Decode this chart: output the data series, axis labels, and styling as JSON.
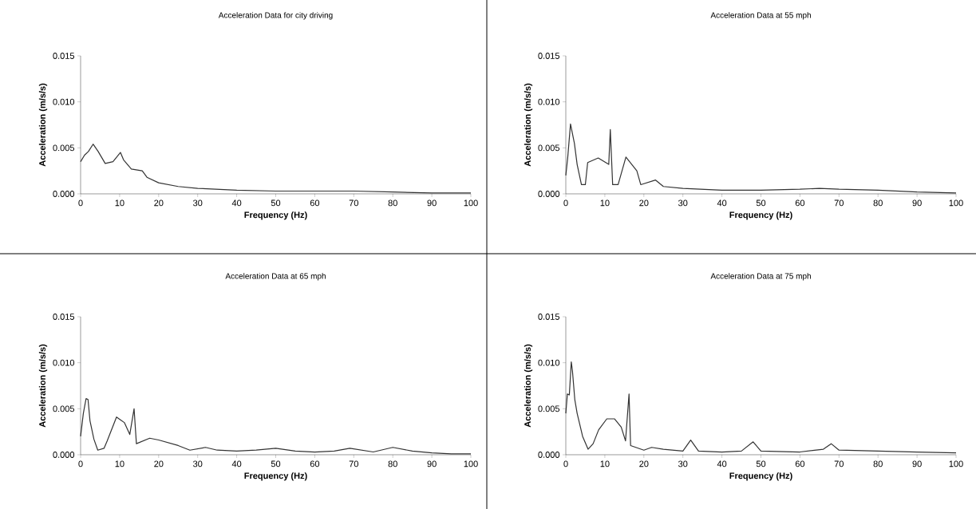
{
  "chart_data": [
    {
      "type": "line",
      "title": "Acceleration Data for city driving",
      "xlabel": "Frequency (Hz)",
      "ylabel": "Acceleration (m/s/s)",
      "xlim": [
        0,
        100
      ],
      "ylim": [
        0,
        0.015
      ],
      "xticks": [
        0,
        10,
        20,
        30,
        40,
        50,
        60,
        70,
        80,
        90,
        100
      ],
      "yticks": [
        {
          "value": 0,
          "label": "0.000"
        },
        {
          "value": 0.005,
          "label": "0.005"
        },
        {
          "value": 0.01,
          "label": "0.010"
        },
        {
          "value": 0.015,
          "label": "0.015"
        }
      ],
      "x": [
        0,
        1,
        2,
        3.2,
        4.5,
        6.3,
        8.3,
        10.2,
        11,
        13,
        15.8,
        17,
        20,
        25,
        30,
        40,
        50,
        60,
        70,
        80,
        90,
        100
      ],
      "series": [
        {
          "color": "#333333",
          "values": [
            0.0035,
            0.0042,
            0.0046,
            0.0054,
            0.0046,
            0.0033,
            0.0035,
            0.0045,
            0.0037,
            0.0027,
            0.0025,
            0.0018,
            0.0012,
            0.0008,
            0.0006,
            0.0004,
            0.0003,
            0.0003,
            0.0003,
            0.0002,
            0.0001,
            0.0001
          ]
        }
      ]
    },
    {
      "type": "line",
      "title": "Acceleration Data at 55 mph",
      "xlabel": "Frequency (Hz)",
      "ylabel": "Acceleration (m/s/s)",
      "xlim": [
        0,
        100
      ],
      "ylim": [
        0,
        0.015
      ],
      "xticks": [
        0,
        10,
        20,
        30,
        40,
        50,
        60,
        70,
        80,
        90,
        100
      ],
      "yticks": [
        {
          "value": 0,
          "label": "0.000"
        },
        {
          "value": 0.005,
          "label": "0.005"
        },
        {
          "value": 0.01,
          "label": "0.010"
        },
        {
          "value": 0.015,
          "label": "0.015"
        }
      ],
      "x": [
        0,
        0.5,
        1.2,
        2.2,
        2.9,
        4,
        5,
        5.6,
        8.3,
        11,
        11.4,
        12,
        13.4,
        15.4,
        18.2,
        19.2,
        23,
        25,
        30,
        40,
        50,
        60,
        65,
        70,
        80,
        90,
        100
      ],
      "series": [
        {
          "color": "#333333",
          "values": [
            0.002,
            0.004,
            0.0076,
            0.0055,
            0.0032,
            0.001,
            0.001,
            0.0034,
            0.0039,
            0.0032,
            0.007,
            0.001,
            0.001,
            0.004,
            0.0025,
            0.001,
            0.0015,
            0.0008,
            0.0006,
            0.0004,
            0.0004,
            0.0005,
            0.0006,
            0.0005,
            0.0004,
            0.0002,
            0.0001
          ]
        }
      ]
    },
    {
      "type": "line",
      "title": "Acceleration Data at 65 mph",
      "xlabel": "Frequency (Hz)",
      "ylabel": "Acceleration (m/s/s)",
      "xlim": [
        0,
        100
      ],
      "ylim": [
        0,
        0.015
      ],
      "xticks": [
        0,
        10,
        20,
        30,
        40,
        50,
        60,
        70,
        80,
        90,
        100
      ],
      "yticks": [
        {
          "value": 0,
          "label": "0.000"
        },
        {
          "value": 0.005,
          "label": "0.005"
        },
        {
          "value": 0.01,
          "label": "0.010"
        },
        {
          "value": 0.015,
          "label": "0.015"
        }
      ],
      "x": [
        0,
        0.7,
        1.4,
        1.9,
        2.4,
        3.4,
        4.4,
        6,
        6.8,
        9.2,
        10.2,
        11.2,
        12.6,
        13.7,
        14.3,
        17.7,
        20,
        25,
        28,
        32,
        35,
        40,
        45,
        50,
        55,
        60,
        65,
        69,
        75,
        80,
        85,
        90,
        95,
        100
      ],
      "series": [
        {
          "color": "#333333",
          "values": [
            0.002,
            0.0045,
            0.0061,
            0.006,
            0.0037,
            0.0017,
            0.0005,
            0.0007,
            0.0015,
            0.0041,
            0.0038,
            0.0035,
            0.0022,
            0.005,
            0.0012,
            0.0018,
            0.0016,
            0.001,
            0.0005,
            0.0008,
            0.0005,
            0.0004,
            0.0005,
            0.0007,
            0.0004,
            0.0003,
            0.0004,
            0.0007,
            0.0003,
            0.0008,
            0.0004,
            0.0002,
            0.0001,
            0.0001
          ]
        }
      ]
    },
    {
      "type": "line",
      "title": "Acceleration Data at 75 mph",
      "xlabel": "Frequency (Hz)",
      "ylabel": "Acceleration (m/s/s)",
      "xlim": [
        0,
        100
      ],
      "ylim": [
        0,
        0.015
      ],
      "xticks": [
        0,
        10,
        20,
        30,
        40,
        50,
        60,
        70,
        80,
        90,
        100
      ],
      "yticks": [
        {
          "value": 0,
          "label": "0.000"
        },
        {
          "value": 0.005,
          "label": "0.005"
        },
        {
          "value": 0.01,
          "label": "0.010"
        },
        {
          "value": 0.015,
          "label": "0.015"
        }
      ],
      "x": [
        0,
        0.4,
        0.9,
        1.4,
        1.7,
        2.3,
        2.9,
        4.3,
        5.7,
        7,
        8.4,
        10.5,
        12.5,
        14.2,
        15.3,
        16.2,
        16.6,
        20,
        22,
        25,
        30,
        32,
        34,
        40,
        45,
        48,
        50,
        60,
        66,
        68,
        70,
        80,
        90,
        100
      ],
      "series": [
        {
          "color": "#333333",
          "values": [
            0.0045,
            0.0066,
            0.0065,
            0.0101,
            0.0091,
            0.006,
            0.0045,
            0.002,
            0.0006,
            0.0012,
            0.0027,
            0.0039,
            0.0039,
            0.003,
            0.0015,
            0.0066,
            0.001,
            0.0005,
            0.0008,
            0.0006,
            0.0004,
            0.0016,
            0.0004,
            0.0003,
            0.0004,
            0.0014,
            0.0004,
            0.0003,
            0.0006,
            0.0012,
            0.0005,
            0.0004,
            0.0003,
            0.0002
          ]
        }
      ]
    }
  ]
}
